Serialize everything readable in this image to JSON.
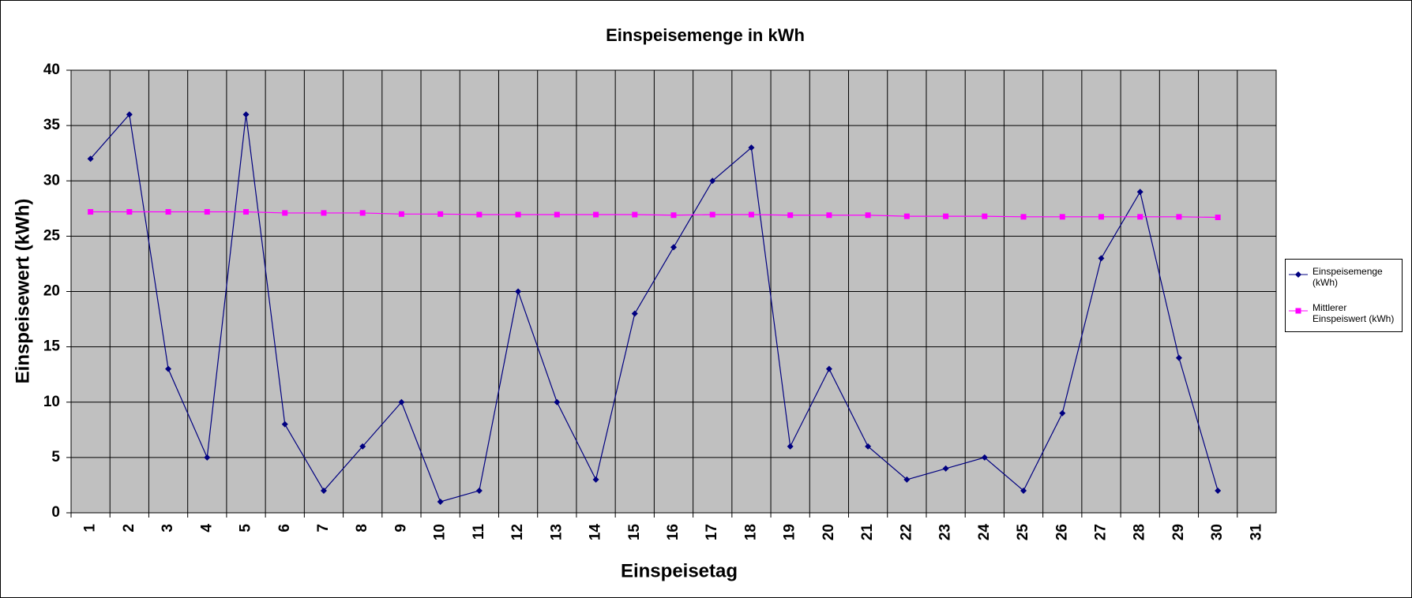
{
  "chart_data": {
    "type": "line",
    "title": "Einspeisemenge in kWh",
    "x_label": "Einspeisetag",
    "y_label": "Einspeisewert  (kWh)",
    "categories": [
      "1",
      "2",
      "3",
      "4",
      "5",
      "6",
      "7",
      "8",
      "9",
      "10",
      "11",
      "12",
      "13",
      "14",
      "15",
      "16",
      "17",
      "18",
      "19",
      "20",
      "21",
      "22",
      "23",
      "24",
      "25",
      "26",
      "27",
      "28",
      "29",
      "30",
      "31"
    ],
    "series": [
      {
        "name": "Einspeisemenge (kWh)",
        "color": "#000080",
        "marker": "diamond",
        "values": [
          32,
          36,
          13,
          5,
          36,
          8,
          2,
          6,
          10,
          1,
          2,
          20,
          10,
          3,
          18,
          24,
          30,
          33,
          6,
          13,
          6,
          3,
          4,
          5,
          2,
          9,
          23,
          29,
          14,
          2,
          null
        ]
      },
      {
        "name": "Mittlerer Einspeiswert (kWh)",
        "color": "#ff00ff",
        "marker": "square",
        "values": [
          27.2,
          27.2,
          27.2,
          27.2,
          27.2,
          27.1,
          27.1,
          27.1,
          27.0,
          27.0,
          26.95,
          26.95,
          26.95,
          26.95,
          26.95,
          26.9,
          26.95,
          26.95,
          26.9,
          26.9,
          26.9,
          26.8,
          26.8,
          26.8,
          26.75,
          26.75,
          26.75,
          26.75,
          26.75,
          26.7,
          null
        ]
      }
    ],
    "ylim": [
      0,
      40
    ],
    "yticks": [
      0,
      5,
      10,
      15,
      20,
      25,
      30,
      35,
      40
    ],
    "grid": true,
    "legend": "right"
  }
}
